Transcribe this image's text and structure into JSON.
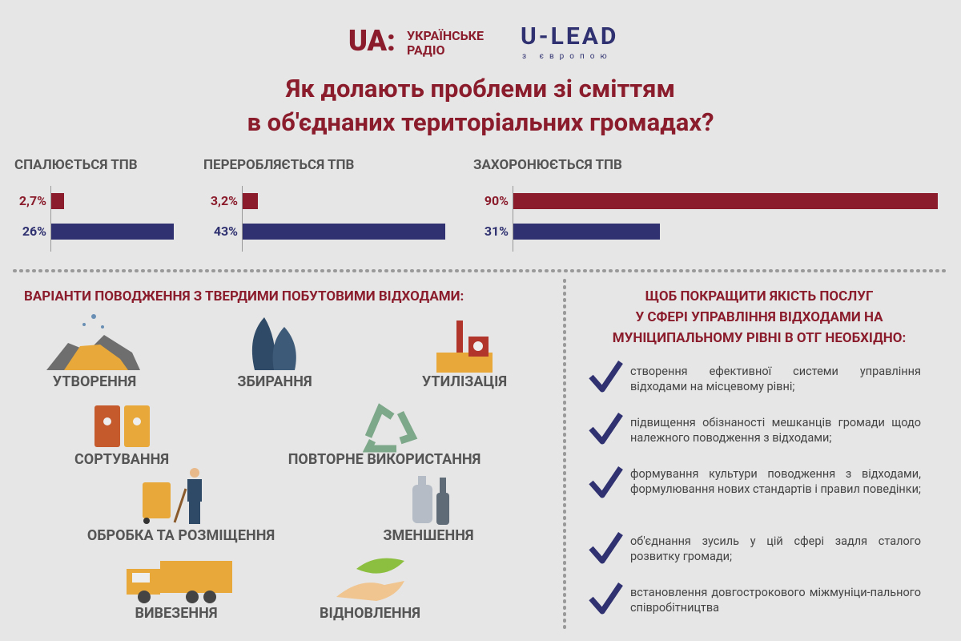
{
  "header": {
    "logo_ua": "UA:",
    "logo_radio_line1": "УКРАЇНСЬКЕ",
    "logo_radio_line2": "РАДІО",
    "logo_ulead": "U-LEAD",
    "logo_ulead_tagline": "з європою",
    "title_line1": "Як долають проблеми зі сміттям",
    "title_line2": "в об'єднаних територіальних громадах?"
  },
  "chart_data": [
    {
      "type": "bar",
      "orientation": "horizontal",
      "title": "СПАЛЮЄТЬСЯ ТПВ",
      "values": [
        2.7,
        26
      ],
      "value_labels": [
        "2,7%",
        "26%"
      ],
      "colors": [
        "#8a1c2c",
        "#2f3170"
      ],
      "xlim": [
        0,
        100
      ]
    },
    {
      "type": "bar",
      "orientation": "horizontal",
      "title": "ПЕРЕРОБЛЯЄТЬСЯ ТПВ",
      "values": [
        3.2,
        43
      ],
      "value_labels": [
        "3,2%",
        "43%"
      ],
      "colors": [
        "#8a1c2c",
        "#2f3170"
      ],
      "xlim": [
        0,
        100
      ]
    },
    {
      "type": "bar",
      "orientation": "horizontal",
      "title": "ЗАХОРОНЮЄТЬСЯ ТПВ",
      "values": [
        90,
        31
      ],
      "value_labels": [
        "90%",
        "31%"
      ],
      "colors": [
        "#8a1c2c",
        "#2f3170"
      ],
      "xlim": [
        0,
        100
      ]
    }
  ],
  "options": {
    "title": "ВАРІАНТИ ПОВОДЖЕННЯ З ТВЕРДИМИ ПОБУТОВИМИ ВІДХОДАМИ:",
    "items": [
      "УТВОРЕННЯ",
      "ЗБИРАННЯ",
      "УТИЛІЗАЦІЯ",
      "СОРТУВАННЯ",
      "ПОВТОРНЕ ВИКОРИСТАННЯ",
      "ОБРОБКА ТА РОЗМІЩЕННЯ",
      "ЗМЕНШЕННЯ",
      "ВИВЕЗЕННЯ",
      "ВІДНОВЛЕННЯ"
    ]
  },
  "recommendations": {
    "title_lines": [
      "ЩОБ ПОКРАЩИТИ ЯКІСТЬ ПОСЛУГ",
      "У СФЕРІ УПРАВЛІННЯ ВІДХОДАМИ НА",
      "МУНІЦИПАЛЬНОМУ РІВНІ В ОТГ НЕОБХІДНО:"
    ],
    "items": [
      "створення ефективної системи управління відходами на місцевому рівні;",
      "підвищення обізнаності мешканців громади щодо належного поводження з відходами;",
      "формування культури поводження з відходами, формулювання нових стандартів і правил поведінки;",
      "об'єднання зусиль у цій сфері задля сталого розвитку громади;",
      "встановлення довгострокового міжмуніци-пального співробітництва"
    ]
  }
}
